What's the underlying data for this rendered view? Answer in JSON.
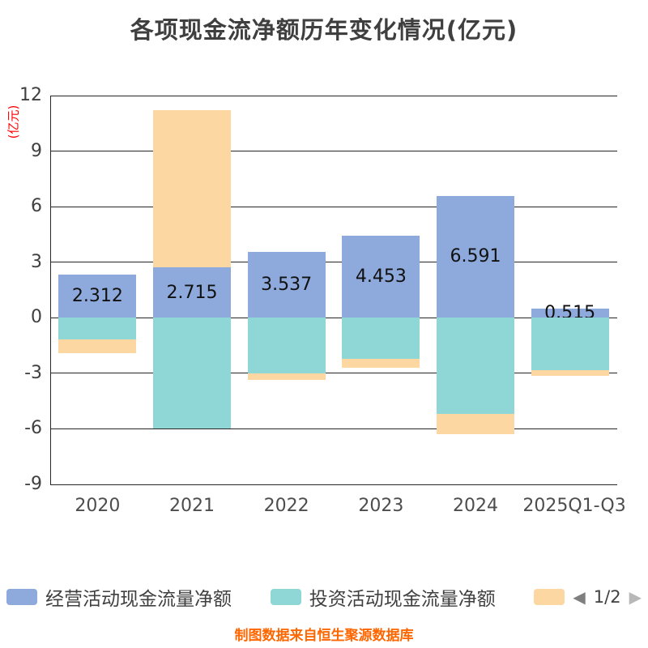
{
  "title": "各项现金流净额历年变化情况(亿元)",
  "y_axis_unit": "(亿元)",
  "footer": "制图数据来自恒生聚源数据库",
  "legend": {
    "items": [
      {
        "label": "经营活动现金流量净额",
        "color": "#8EA9DB"
      },
      {
        "label": "投资活动现金流量净额",
        "color": "#8FD6D6"
      },
      {
        "label": "",
        "color": "#FCD7A1"
      }
    ],
    "pagination": {
      "current": "1/2",
      "prev_icon": "left-arrow",
      "next_icon": "right-arrow"
    }
  },
  "chart_data": {
    "type": "bar",
    "stacked": true,
    "title": "各项现金流净额历年变化情况(亿元)",
    "ylabel": "(亿元)",
    "ylim": [
      -9,
      12
    ],
    "yticks": [
      12,
      9,
      6,
      3,
      0,
      -3,
      -6,
      -9
    ],
    "grid": true,
    "legend_position": "bottom",
    "categories": [
      "2020",
      "2021",
      "2022",
      "2023",
      "2024",
      "2025Q1-Q3"
    ],
    "series": [
      {
        "name": "经营活动现金流量净额",
        "color": "#8EA9DB",
        "values": [
          2.312,
          2.715,
          3.537,
          4.453,
          6.591,
          0.515
        ]
      },
      {
        "name": "投资活动现金流量净额",
        "color": "#8FD6D6",
        "values": [
          -1.15,
          -6.0,
          -3.0,
          -2.2,
          -5.2,
          -2.85
        ]
      },
      {
        "name": "",
        "color": "#FCD7A1",
        "values": [
          -0.75,
          8.5,
          -0.35,
          -0.5,
          -1.1,
          -0.3
        ]
      }
    ],
    "data_labels": [
      "2.312",
      "2.715",
      "3.537",
      "4.453",
      "6.591",
      "0.515"
    ]
  }
}
